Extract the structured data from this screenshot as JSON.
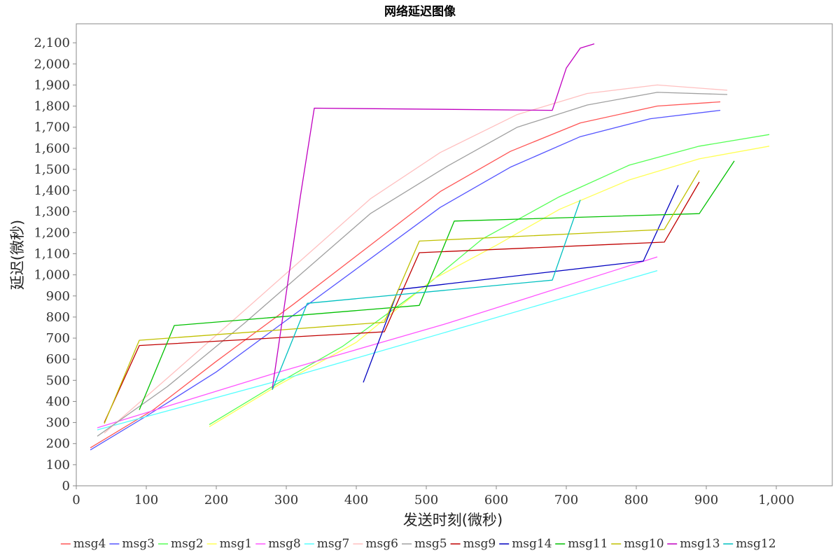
{
  "chart_data": {
    "type": "line",
    "title": "网络延迟图像",
    "xlabel": "发送时刻(微秒)",
    "ylabel": "延迟(微秒)",
    "xlim": [
      0,
      1080
    ],
    "ylim": [
      0,
      2190
    ],
    "x_ticks": [
      0,
      100,
      200,
      300,
      400,
      500,
      600,
      700,
      800,
      900,
      1000
    ],
    "x_tick_labels": [
      "0",
      "100",
      "200",
      "300",
      "400",
      "500",
      "600",
      "700",
      "800",
      "900",
      "1,000"
    ],
    "y_ticks": [
      0,
      100,
      200,
      300,
      400,
      500,
      600,
      700,
      800,
      900,
      1000,
      1100,
      1200,
      1300,
      1400,
      1500,
      1600,
      1700,
      1800,
      1900,
      2000,
      2100
    ],
    "y_tick_labels": [
      "0",
      "100",
      "200",
      "300",
      "400",
      "500",
      "600",
      "700",
      "800",
      "900",
      "1,000",
      "1,100",
      "1,200",
      "1,300",
      "1,400",
      "1,500",
      "1,600",
      "1,700",
      "1,800",
      "1,900",
      "2,000",
      "2,100"
    ],
    "grid": false,
    "legend_position": "bottom",
    "series": [
      {
        "name": "msg4",
        "color": "#ff5555",
        "points": [
          [
            20,
            180
          ],
          [
            110,
            360
          ],
          [
            200,
            590
          ],
          [
            310,
            860
          ],
          [
            520,
            1395
          ],
          [
            620,
            1585
          ],
          [
            720,
            1720
          ],
          [
            830,
            1800
          ],
          [
            920,
            1820
          ]
        ]
      },
      {
        "name": "msg3",
        "color": "#5555ff",
        "points": [
          [
            20,
            170
          ],
          [
            100,
            330
          ],
          [
            200,
            540
          ],
          [
            290,
            760
          ],
          [
            520,
            1320
          ],
          [
            620,
            1510
          ],
          [
            720,
            1655
          ],
          [
            820,
            1740
          ],
          [
            920,
            1780
          ]
        ]
      },
      {
        "name": "msg2",
        "color": "#55ff55",
        "points": [
          [
            190,
            290
          ],
          [
            290,
            490
          ],
          [
            380,
            660
          ],
          [
            500,
            950
          ],
          [
            580,
            1170
          ],
          [
            690,
            1370
          ],
          [
            790,
            1520
          ],
          [
            890,
            1610
          ],
          [
            990,
            1665
          ]
        ]
      },
      {
        "name": "msg1",
        "color": "#ffff55",
        "points": [
          [
            190,
            280
          ],
          [
            290,
            480
          ],
          [
            400,
            680
          ],
          [
            510,
            980
          ],
          [
            600,
            1140
          ],
          [
            690,
            1310
          ],
          [
            790,
            1450
          ],
          [
            890,
            1550
          ],
          [
            990,
            1610
          ]
        ]
      },
      {
        "name": "msg8",
        "color": "#ff55ff",
        "points": [
          [
            30,
            275
          ],
          [
            280,
            530
          ],
          [
            530,
            770
          ],
          [
            830,
            1085
          ]
        ]
      },
      {
        "name": "msg7",
        "color": "#55ffff",
        "points": [
          [
            30,
            265
          ],
          [
            280,
            490
          ],
          [
            530,
            730
          ],
          [
            830,
            1020
          ]
        ]
      },
      {
        "name": "msg6",
        "color": "#ffc0c0",
        "points": [
          [
            40,
            250
          ],
          [
            130,
            510
          ],
          [
            250,
            860
          ],
          [
            420,
            1360
          ],
          [
            520,
            1580
          ],
          [
            630,
            1760
          ],
          [
            730,
            1860
          ],
          [
            830,
            1900
          ],
          [
            930,
            1875
          ]
        ]
      },
      {
        "name": "msg5",
        "color": "#a0a0a0",
        "points": [
          [
            30,
            235
          ],
          [
            130,
            470
          ],
          [
            240,
            770
          ],
          [
            420,
            1290
          ],
          [
            530,
            1515
          ],
          [
            630,
            1700
          ],
          [
            730,
            1805
          ],
          [
            830,
            1865
          ],
          [
            930,
            1855
          ]
        ]
      },
      {
        "name": "msg9",
        "color": "#c00000",
        "points": [
          [
            40,
            300
          ],
          [
            90,
            665
          ],
          [
            440,
            730
          ],
          [
            490,
            1105
          ],
          [
            840,
            1155
          ],
          [
            890,
            1440
          ]
        ]
      },
      {
        "name": "msg14",
        "color": "#0000c0",
        "points": [
          [
            410,
            490
          ],
          [
            460,
            930
          ],
          [
            810,
            1065
          ],
          [
            860,
            1425
          ]
        ]
      },
      {
        "name": "msg11",
        "color": "#00c000",
        "points": [
          [
            90,
            360
          ],
          [
            140,
            760
          ],
          [
            490,
            855
          ],
          [
            540,
            1255
          ],
          [
            890,
            1290
          ],
          [
            940,
            1540
          ]
        ]
      },
      {
        "name": "msg10",
        "color": "#c0c000",
        "points": [
          [
            40,
            295
          ],
          [
            90,
            690
          ],
          [
            440,
            775
          ],
          [
            490,
            1160
          ],
          [
            840,
            1215
          ],
          [
            890,
            1495
          ]
        ]
      },
      {
        "name": "msg13",
        "color": "#c000c0",
        "points": [
          [
            280,
            460
          ],
          [
            320,
            1370
          ],
          [
            340,
            1790
          ],
          [
            680,
            1780
          ],
          [
            700,
            1980
          ],
          [
            720,
            2075
          ],
          [
            740,
            2095
          ]
        ]
      },
      {
        "name": "msg12",
        "color": "#00c0c0",
        "points": [
          [
            280,
            455
          ],
          [
            330,
            865
          ],
          [
            680,
            975
          ],
          [
            720,
            1355
          ]
        ]
      }
    ]
  }
}
